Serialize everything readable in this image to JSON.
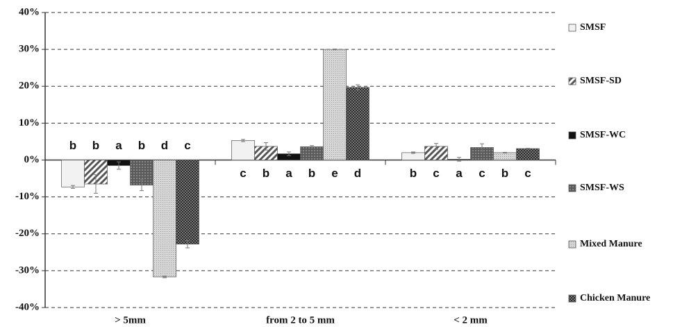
{
  "chart_data": {
    "type": "bar",
    "categories": [
      "> 5mm",
      "from 2 to 5 mm",
      "< 2 mm"
    ],
    "series": [
      {
        "name": "SMSF",
        "color": "#f2f2f2",
        "pattern": "solid",
        "values": [
          -7.3,
          5.3,
          2.0
        ],
        "errors": [
          0.4,
          0.3,
          0.2
        ],
        "letters": [
          "b",
          "c",
          "b"
        ]
      },
      {
        "name": "SMSF-SD",
        "color": "#555555",
        "pattern": "hatch",
        "values": [
          -6.5,
          3.7,
          3.7
        ],
        "errors": [
          2.5,
          1.0,
          0.8
        ],
        "letters": [
          "b",
          "b",
          "c"
        ]
      },
      {
        "name": "SMSF-WC",
        "color": "#111111",
        "pattern": "solid",
        "values": [
          -1.5,
          1.7,
          0.2
        ],
        "errors": [
          1.0,
          0.5,
          0.5
        ],
        "letters": [
          "a",
          "a",
          "a"
        ]
      },
      {
        "name": "SMSF-WS",
        "color": "#5a5a5a",
        "pattern": "cross",
        "values": [
          -6.8,
          3.6,
          3.4
        ],
        "errors": [
          1.5,
          0.3,
          1.0
        ],
        "letters": [
          "b",
          "b",
          "c"
        ]
      },
      {
        "name": "Mixed Manure",
        "color": "#cfcfcf",
        "pattern": "dots",
        "values": [
          -31.7,
          30.0,
          2.0
        ],
        "errors": [
          0.2,
          0.1,
          0.1
        ],
        "letters": [
          "d",
          "e",
          "b"
        ]
      },
      {
        "name": "Chicken Manure",
        "color": "#3a3a3a",
        "pattern": "checker",
        "values": [
          -22.8,
          19.7,
          3.1
        ],
        "errors": [
          1.0,
          0.7,
          0.1
        ],
        "letters": [
          "c",
          "d",
          "c"
        ]
      }
    ],
    "ylim": [
      -40,
      40
    ],
    "yticks": [
      {
        "value": -40,
        "label": "-40%"
      },
      {
        "value": -30,
        "label": "-30%"
      },
      {
        "value": -20,
        "label": "-20%"
      },
      {
        "value": -10,
        "label": "-10%"
      },
      {
        "value": 0,
        "label": "0%"
      },
      {
        "value": 10,
        "label": "10%"
      },
      {
        "value": 20,
        "label": "20%"
      },
      {
        "value": 30,
        "label": "30%"
      },
      {
        "value": 40,
        "label": "40%"
      }
    ],
    "grid": true
  }
}
